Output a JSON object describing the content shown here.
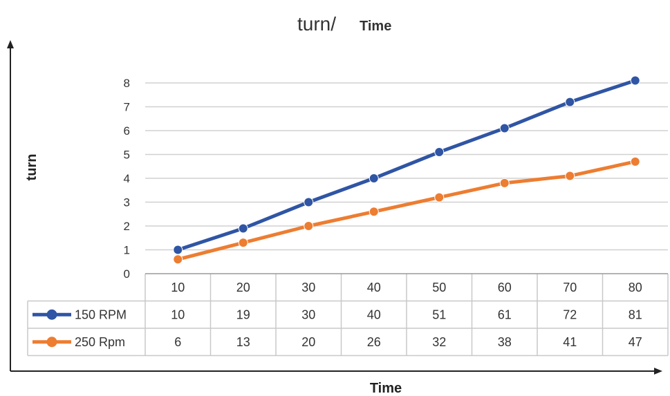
{
  "chart_data": {
    "type": "line",
    "title": "turn/",
    "title_sub": "Time",
    "xlabel": "Time",
    "ylabel": "turn",
    "categories": [
      "10",
      "20",
      "30",
      "40",
      "50",
      "60",
      "70",
      "80"
    ],
    "yticks": [
      "0",
      "1",
      "2",
      "3",
      "4",
      "5",
      "6",
      "7",
      "8"
    ],
    "ylim": [
      0,
      9
    ],
    "grid": true,
    "legend": "data-table",
    "series": [
      {
        "name": "150 RPM",
        "color": "#2f55a4",
        "values": [
          1.0,
          1.9,
          3.0,
          4.0,
          5.1,
          6.1,
          7.2,
          8.1
        ],
        "table_values": [
          "10",
          "19",
          "30",
          "40",
          "51",
          "61",
          "72",
          "81"
        ]
      },
      {
        "name": "250 Rpm",
        "color": "#ed7d31",
        "values": [
          0.6,
          1.3,
          2.0,
          2.6,
          3.2,
          3.8,
          4.1,
          4.7
        ],
        "table_values": [
          "6",
          "13",
          "20",
          "26",
          "32",
          "38",
          "41",
          "47"
        ]
      }
    ]
  }
}
